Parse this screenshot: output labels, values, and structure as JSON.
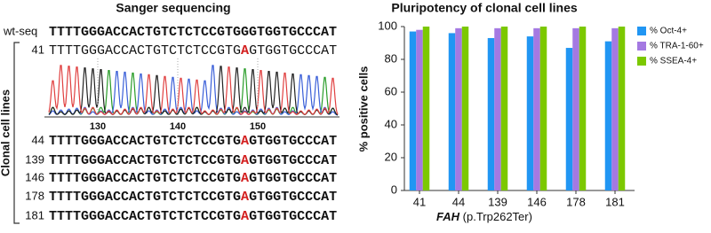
{
  "sequencing": {
    "title": "Sanger sequencing",
    "wt_label": "wt-seq",
    "wt_sequence": "TTTTGGGACCACTGTCTCTCCGTGGGTGGTGCCCAT",
    "group_label": "Clonal cell lines",
    "chromatogram_ticks": [
      130,
      140,
      150
    ],
    "clones": [
      {
        "id": "41",
        "prefix": "TTTTGGGACCACTGTCTCTCCGTG",
        "mutation": "A",
        "suffix": "GTGGTGCCCAT"
      },
      {
        "id": "44",
        "prefix": "TTTTGGGACCACTGTCTCTCCGTG",
        "mutation": "A",
        "suffix": "GTGGTGCCCAT"
      },
      {
        "id": "139",
        "prefix": "TTTTGGGACCACTGTCTCTCCGTG",
        "mutation": "A",
        "suffix": "GTGGTGCCCAT"
      },
      {
        "id": "146",
        "prefix": "TTTTGGGACCACTGTCTCTCCGTG",
        "mutation": "A",
        "suffix": "GTGGTGCCCAT"
      },
      {
        "id": "178",
        "prefix": "TTTTGGGACCACTGTCTCTCCGTG",
        "mutation": "A",
        "suffix": "GTGGTGCCCAT"
      },
      {
        "id": "181",
        "prefix": "TTTTGGGACCACTGTCTCTCCGTG",
        "mutation": "A",
        "suffix": "GTGGTGCCCAT"
      }
    ]
  },
  "chart_data": {
    "type": "bar",
    "title": "Pluripotency of clonal cell lines",
    "ylabel": "% positive cells",
    "xlabel_gene": "FAH",
    "xlabel_variant": "(p.Trp262Ter)",
    "categories": [
      "41",
      "44",
      "139",
      "146",
      "178",
      "181"
    ],
    "series": [
      {
        "name": "% Oct-4+",
        "color": "#2196f3",
        "values": [
          97,
          96,
          93,
          94,
          87,
          91
        ]
      },
      {
        "name": "% TRA-1-60+",
        "color": "#a479e2",
        "values": [
          98,
          99,
          99,
          99,
          99,
          99
        ]
      },
      {
        "name": "% SSEA-4+",
        "color": "#7cc800",
        "values": [
          100,
          100,
          100,
          100,
          100,
          100
        ]
      }
    ],
    "ylim": [
      0,
      100
    ],
    "yticks": [
      0,
      20,
      40,
      60,
      80,
      100
    ],
    "grid": false
  }
}
